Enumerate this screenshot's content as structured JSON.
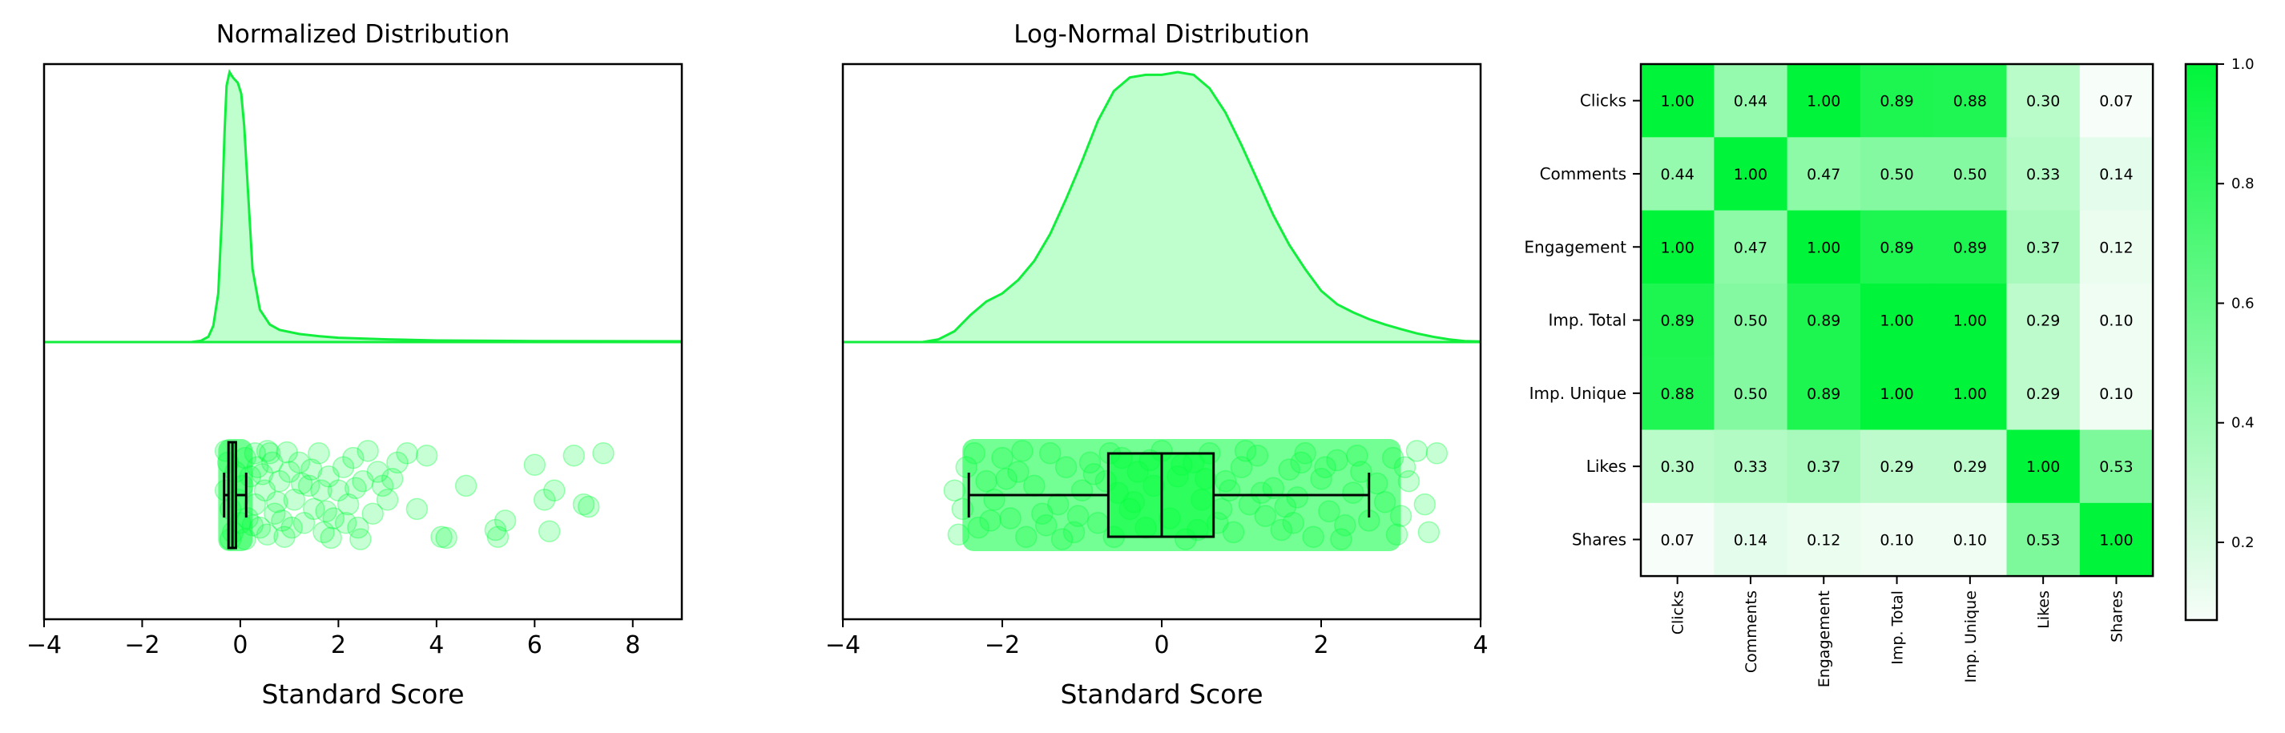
{
  "colors": {
    "accent": "#00ff3a",
    "accent_line": "#11ee3c",
    "box_line": "#000000"
  },
  "chart_data": [
    {
      "type": "density_scatter_box",
      "title": "Normalized Distribution",
      "xlabel": "Standard Score",
      "xlim": [
        -4,
        9
      ],
      "xticks": [
        -4,
        -2,
        0,
        2,
        4,
        6,
        8
      ],
      "density": {
        "x": [
          -4,
          -1.0,
          -0.8,
          -0.65,
          -0.55,
          -0.45,
          -0.38,
          -0.32,
          -0.28,
          -0.22,
          -0.15,
          -0.05,
          0.02,
          0.08,
          0.15,
          0.25,
          0.4,
          0.6,
          0.8,
          1.2,
          1.6,
          2.0,
          3.0,
          4.0,
          6.0,
          9.0
        ],
        "y": [
          0,
          0,
          0.005,
          0.02,
          0.06,
          0.18,
          0.45,
          0.78,
          0.95,
          1.0,
          0.98,
          0.96,
          0.92,
          0.8,
          0.58,
          0.27,
          0.12,
          0.065,
          0.045,
          0.03,
          0.022,
          0.016,
          0.01,
          0.006,
          0.004,
          0.003
        ]
      },
      "box": {
        "whisker_low": -0.33,
        "q1": -0.24,
        "median": -0.16,
        "q3": -0.09,
        "whisker_high": 0.12
      },
      "points": [
        [
          -0.3,
          0.1
        ],
        [
          -0.2,
          -0.3
        ],
        [
          -0.1,
          0.5
        ],
        [
          0.0,
          -0.6
        ],
        [
          -0.25,
          0.7
        ],
        [
          -0.15,
          -0.8
        ],
        [
          0.05,
          0.2
        ],
        [
          -0.05,
          -0.1
        ],
        [
          0.1,
          0.8
        ],
        [
          0.15,
          -0.5
        ],
        [
          0.2,
          0.4
        ],
        [
          0.3,
          -0.2
        ],
        [
          0.35,
          0.6
        ],
        [
          0.4,
          -0.7
        ],
        [
          0.5,
          0.1
        ],
        [
          0.6,
          0.9
        ],
        [
          0.7,
          -0.4
        ],
        [
          0.8,
          0.3
        ],
        [
          0.9,
          -0.9
        ],
        [
          1.0,
          0.5
        ],
        [
          1.1,
          -0.1
        ],
        [
          1.2,
          0.7
        ],
        [
          1.3,
          -0.6
        ],
        [
          1.4,
          0.2
        ],
        [
          1.5,
          -0.3
        ],
        [
          1.6,
          0.9
        ],
        [
          1.7,
          -0.8
        ],
        [
          1.8,
          0.4
        ],
        [
          1.9,
          -0.5
        ],
        [
          2.0,
          0.1
        ],
        [
          2.1,
          0.6
        ],
        [
          2.2,
          -0.2
        ],
        [
          2.3,
          0.8
        ],
        [
          2.4,
          -0.7
        ],
        [
          2.5,
          0.3
        ],
        [
          2.6,
          0.95
        ],
        [
          2.7,
          -0.4
        ],
        [
          2.8,
          0.5
        ],
        [
          3.0,
          -0.1
        ],
        [
          3.2,
          0.7
        ],
        [
          3.4,
          0.9
        ],
        [
          3.6,
          -0.3
        ],
        [
          3.8,
          0.85
        ],
        [
          4.1,
          -0.9
        ],
        [
          4.2,
          -0.92
        ],
        [
          4.6,
          0.2
        ],
        [
          5.2,
          -0.75
        ],
        [
          5.25,
          -0.9
        ],
        [
          5.4,
          -0.55
        ],
        [
          6.0,
          0.65
        ],
        [
          6.2,
          -0.1
        ],
        [
          6.3,
          -0.78
        ],
        [
          6.4,
          0.1
        ],
        [
          6.8,
          0.85
        ],
        [
          7.0,
          -0.2
        ],
        [
          7.1,
          -0.25
        ],
        [
          7.4,
          0.9
        ],
        [
          0.55,
          -0.85
        ],
        [
          1.05,
          -0.7
        ],
        [
          1.75,
          -0.35
        ],
        [
          2.35,
          0.15
        ],
        [
          0.45,
          0.45
        ],
        [
          0.65,
          0.7
        ],
        [
          0.25,
          -0.65
        ],
        [
          1.45,
          0.55
        ],
        [
          2.15,
          -0.6
        ],
        [
          0.75,
          -0.15
        ],
        [
          1.25,
          0.25
        ],
        [
          0.95,
          0.92
        ],
        [
          1.85,
          -0.92
        ],
        [
          2.9,
          0.2
        ],
        [
          2.45,
          -0.95
        ],
        [
          3.1,
          0.35
        ],
        [
          0.85,
          -0.55
        ],
        [
          1.65,
          0.1
        ],
        [
          0.3,
          0.9
        ],
        [
          -0.2,
          -0.95
        ],
        [
          -0.3,
          0.95
        ],
        [
          0.1,
          -0.95
        ],
        [
          0.55,
          0.95
        ]
      ]
    },
    {
      "type": "density_scatter_box",
      "title": "Log-Normal Distribution",
      "xlabel": "Standard Score",
      "xlim": [
        -4,
        4
      ],
      "xticks": [
        -4,
        -2,
        0,
        2,
        4
      ],
      "density": {
        "x": [
          -4,
          -3.0,
          -2.8,
          -2.6,
          -2.4,
          -2.2,
          -2.0,
          -1.8,
          -1.6,
          -1.4,
          -1.2,
          -1.0,
          -0.8,
          -0.6,
          -0.4,
          -0.2,
          0.0,
          0.2,
          0.4,
          0.6,
          0.8,
          1.0,
          1.2,
          1.4,
          1.6,
          1.8,
          2.0,
          2.2,
          2.4,
          2.6,
          2.8,
          3.0,
          3.2,
          3.4,
          3.6,
          3.8,
          4.0
        ],
        "y": [
          0,
          0,
          0.01,
          0.04,
          0.1,
          0.15,
          0.18,
          0.23,
          0.3,
          0.4,
          0.53,
          0.67,
          0.82,
          0.93,
          0.98,
          0.99,
          0.99,
          1.0,
          0.99,
          0.94,
          0.85,
          0.73,
          0.6,
          0.47,
          0.36,
          0.27,
          0.19,
          0.14,
          0.11,
          0.085,
          0.065,
          0.048,
          0.032,
          0.02,
          0.01,
          0.004,
          0.002
        ]
      },
      "box": {
        "whisker_low": -2.42,
        "q1": -0.67,
        "median": 0.0,
        "q3": 0.65,
        "whisker_high": 2.6
      },
      "points": [
        [
          -2.6,
          0.1
        ],
        [
          -2.5,
          -0.3
        ],
        [
          -2.45,
          0.6
        ],
        [
          -2.3,
          -0.7
        ],
        [
          -2.2,
          0.3
        ],
        [
          -2.1,
          -0.1
        ],
        [
          -2.0,
          0.8
        ],
        [
          -1.9,
          -0.5
        ],
        [
          -1.8,
          0.5
        ],
        [
          -1.7,
          -0.9
        ],
        [
          -1.6,
          0.2
        ],
        [
          -1.5,
          -0.4
        ],
        [
          -1.4,
          0.9
        ],
        [
          -1.3,
          -0.2
        ],
        [
          -1.2,
          0.6
        ],
        [
          -1.1,
          -0.8
        ],
        [
          -1.0,
          0.1
        ],
        [
          -0.9,
          0.7
        ],
        [
          -0.8,
          -0.6
        ],
        [
          -0.7,
          0.3
        ],
        [
          -0.6,
          -0.9
        ],
        [
          -0.5,
          0.8
        ],
        [
          -0.4,
          -0.3
        ],
        [
          -0.3,
          0.5
        ],
        [
          -0.2,
          -0.7
        ],
        [
          -0.1,
          0.2
        ],
        [
          0.0,
          0.95
        ],
        [
          0.1,
          -0.5
        ],
        [
          0.2,
          0.4
        ],
        [
          0.3,
          -0.95
        ],
        [
          0.4,
          0.7
        ],
        [
          0.5,
          -0.1
        ],
        [
          0.6,
          0.9
        ],
        [
          0.7,
          -0.6
        ],
        [
          0.8,
          0.3
        ],
        [
          0.9,
          -0.8
        ],
        [
          1.0,
          0.6
        ],
        [
          1.1,
          -0.2
        ],
        [
          1.2,
          0.85
        ],
        [
          1.3,
          -0.45
        ],
        [
          1.4,
          0.15
        ],
        [
          1.5,
          -0.75
        ],
        [
          1.6,
          0.55
        ],
        [
          1.7,
          -0.05
        ],
        [
          1.8,
          0.9
        ],
        [
          1.9,
          -0.9
        ],
        [
          2.0,
          0.35
        ],
        [
          2.1,
          -0.35
        ],
        [
          2.2,
          0.75
        ],
        [
          2.3,
          -0.65
        ],
        [
          2.4,
          0.05
        ],
        [
          2.5,
          0.5
        ],
        [
          2.6,
          -0.55
        ],
        [
          2.7,
          0.25
        ],
        [
          2.8,
          -0.15
        ],
        [
          2.9,
          0.8
        ],
        [
          3.0,
          -0.45
        ],
        [
          3.1,
          0.3
        ],
        [
          3.2,
          0.95
        ],
        [
          3.3,
          -0.2
        ],
        [
          3.35,
          -0.8
        ],
        [
          3.45,
          0.9
        ],
        [
          2.95,
          -0.85
        ],
        [
          3.05,
          0.6
        ],
        [
          -2.55,
          -0.85
        ],
        [
          -2.35,
          0.9
        ],
        [
          -1.95,
          0.35
        ],
        [
          -1.45,
          -0.65
        ],
        [
          -0.85,
          0.45
        ],
        [
          -0.35,
          -0.15
        ],
        [
          0.25,
          0.65
        ],
        [
          0.75,
          -0.3
        ],
        [
          1.25,
          0.05
        ],
        [
          1.75,
          0.7
        ],
        [
          2.25,
          -0.95
        ],
        [
          -1.05,
          -0.45
        ],
        [
          -0.55,
          0.05
        ],
        [
          0.45,
          -0.75
        ],
        [
          1.05,
          0.95
        ],
        [
          1.55,
          -0.25
        ],
        [
          -1.75,
          0.95
        ],
        [
          -1.25,
          -0.95
        ],
        [
          -0.15,
          0.75
        ],
        [
          0.85,
          0.1
        ],
        [
          2.05,
          0.6
        ],
        [
          -2.15,
          -0.55
        ],
        [
          -0.65,
          0.9
        ],
        [
          0.55,
          0.35
        ],
        [
          1.65,
          -0.6
        ],
        [
          2.45,
          0.85
        ]
      ]
    },
    {
      "type": "heatmap",
      "labels": [
        "Clicks",
        "Comments",
        "Engagement",
        "Imp. Total",
        "Imp. Unique",
        "Likes",
        "Shares"
      ],
      "matrix": [
        [
          1.0,
          0.44,
          1.0,
          0.89,
          0.88,
          0.3,
          0.07
        ],
        [
          0.44,
          1.0,
          0.47,
          0.5,
          0.5,
          0.33,
          0.14
        ],
        [
          1.0,
          0.47,
          1.0,
          0.89,
          0.89,
          0.37,
          0.12
        ],
        [
          0.89,
          0.5,
          0.89,
          1.0,
          1.0,
          0.29,
          0.1
        ],
        [
          0.88,
          0.5,
          0.89,
          1.0,
          1.0,
          0.29,
          0.1
        ],
        [
          0.3,
          0.33,
          0.37,
          0.29,
          0.29,
          1.0,
          0.53
        ],
        [
          0.07,
          0.14,
          0.12,
          0.1,
          0.1,
          0.53,
          1.0
        ]
      ],
      "colorbar": {
        "range": [
          0.07,
          1.0
        ],
        "ticks": [
          0.2,
          0.4,
          0.6,
          0.8,
          1.0
        ]
      }
    }
  ]
}
